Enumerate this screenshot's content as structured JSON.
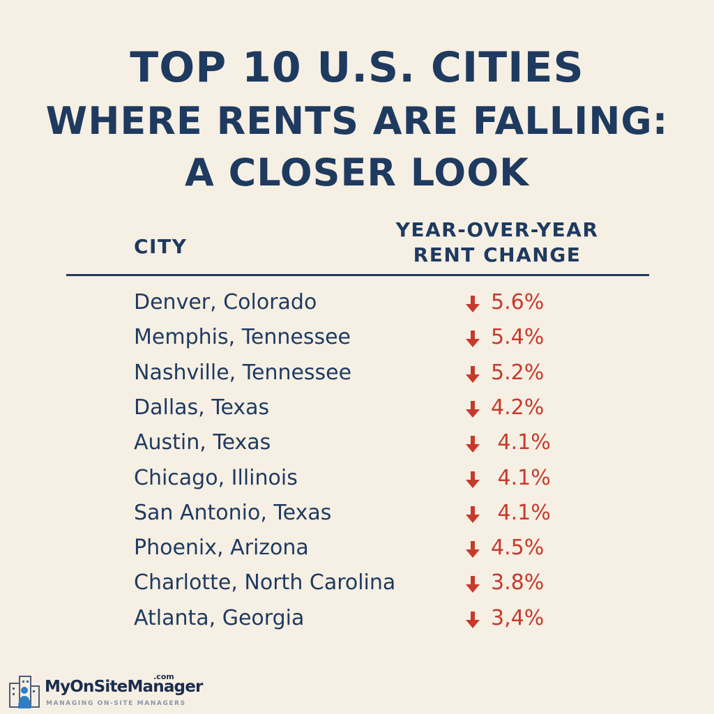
{
  "title": {
    "line1": "TOP 10 U.S. CITIES",
    "line2": "WHERE RENTS ARE FALLING:",
    "line3": "A CLOSER LOOK"
  },
  "table": {
    "header_city": "CITY",
    "header_change_line1": "YEAR-OVER-YEAR",
    "header_change_line2": "RENT CHANGE",
    "rows": [
      {
        "city": "Denver, Colorado",
        "change": "5.6%"
      },
      {
        "city": "Memphis, Tennessee",
        "change": "5.4%"
      },
      {
        "city": "Nashville, Tennessee",
        "change": "5.2%"
      },
      {
        "city": "Dallas, Texas",
        "change": "4.2%"
      },
      {
        "city": "Austin, Texas",
        "change": " 4.1%"
      },
      {
        "city": "Chicago, Illinois",
        "change": " 4.1%"
      },
      {
        "city": "San Antonio, Texas",
        "change": " 4.1%"
      },
      {
        "city": "Phoenix, Arizona",
        "change": "4.5%"
      },
      {
        "city": "Charlotte, North Carolina",
        "change": "3.8%"
      },
      {
        "city": "Atlanta, Georgia",
        "change": "3,4%"
      }
    ],
    "arrow_icon": "arrow-down-icon"
  },
  "logo": {
    "name": "MyOnSiteManager",
    "suffix": ".com",
    "tagline": "MANAGING ON-SITE MANAGERS"
  },
  "colors": {
    "background": "#f6efe4",
    "navy": "#1e3a5f",
    "red": "#c63a2b"
  }
}
